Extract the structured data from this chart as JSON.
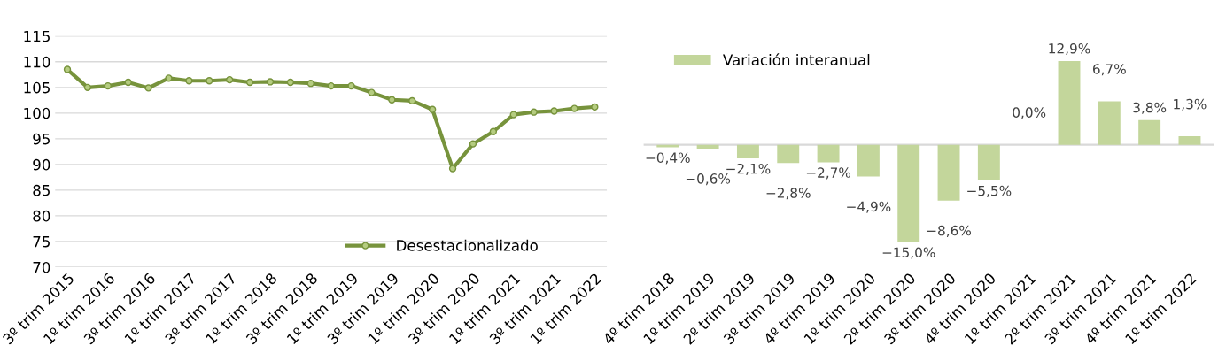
{
  "chart_data": [
    {
      "type": "line",
      "categories": [
        "3º trim 2015",
        null,
        "1º trim 2016",
        null,
        "3º trim 2016",
        null,
        "1º trim 2017",
        null,
        "3º trim 2017",
        null,
        "1º trim 2018",
        null,
        "3º trim 2018",
        null,
        "1º trim 2019",
        null,
        "3º trim 2019",
        null,
        "1º trim 2020",
        null,
        "3º trim 2020",
        null,
        "1º trim 2021",
        null,
        "3º trim 2021",
        null,
        "1º trim 2022"
      ],
      "series": [
        {
          "name": "Desestacionalizado",
          "color": "#77933c",
          "values": [
            108.5,
            105.0,
            105.3,
            106.0,
            104.9,
            106.8,
            106.3,
            106.3,
            106.5,
            106.0,
            106.1,
            106.0,
            105.8,
            105.3,
            105.3,
            104.0,
            102.6,
            102.4,
            100.7,
            89.2,
            94.0,
            96.4,
            99.7,
            100.2,
            100.4,
            100.9,
            101.2
          ]
        }
      ],
      "ylim": [
        70,
        115
      ],
      "yticks": [
        70,
        75,
        80,
        85,
        90,
        95,
        100,
        105,
        110,
        115
      ],
      "grid": "y",
      "legend": "bottom right",
      "marker": "circle",
      "line_style": "solid"
    },
    {
      "type": "bar",
      "categories": [
        "4º trim 2018",
        "1º trim 2019",
        "2º trim 2019",
        "3º trim 2019",
        "4º trim 2019",
        "1º trim 2020",
        "2º trim 2020",
        "3º trim 2020",
        "4º trim 2020",
        "1º trim 2021",
        "2º trim 2021",
        "3º trim 2021",
        "4º trim 2021",
        "1º trim 2022"
      ],
      "series": [
        {
          "name": "Variación interanual",
          "color": "#c3d69b",
          "values": [
            -0.4,
            -0.6,
            -2.1,
            -2.8,
            -2.7,
            -4.9,
            -15.0,
            -8.6,
            -5.5,
            0.0,
            12.9,
            6.7,
            3.8,
            1.3
          ],
          "value_labels": [
            "−0,4%",
            "−0,6%",
            "−2,1%",
            "−2,8%",
            "−2,7%",
            "−4,9%",
            "−15,0%",
            "−8,6%",
            "−5,5%",
            "0,0%",
            "12,9%",
            "6,7%",
            "3,8%",
            "1,3%"
          ]
        }
      ],
      "legend": "top left",
      "grid": false
    }
  ]
}
